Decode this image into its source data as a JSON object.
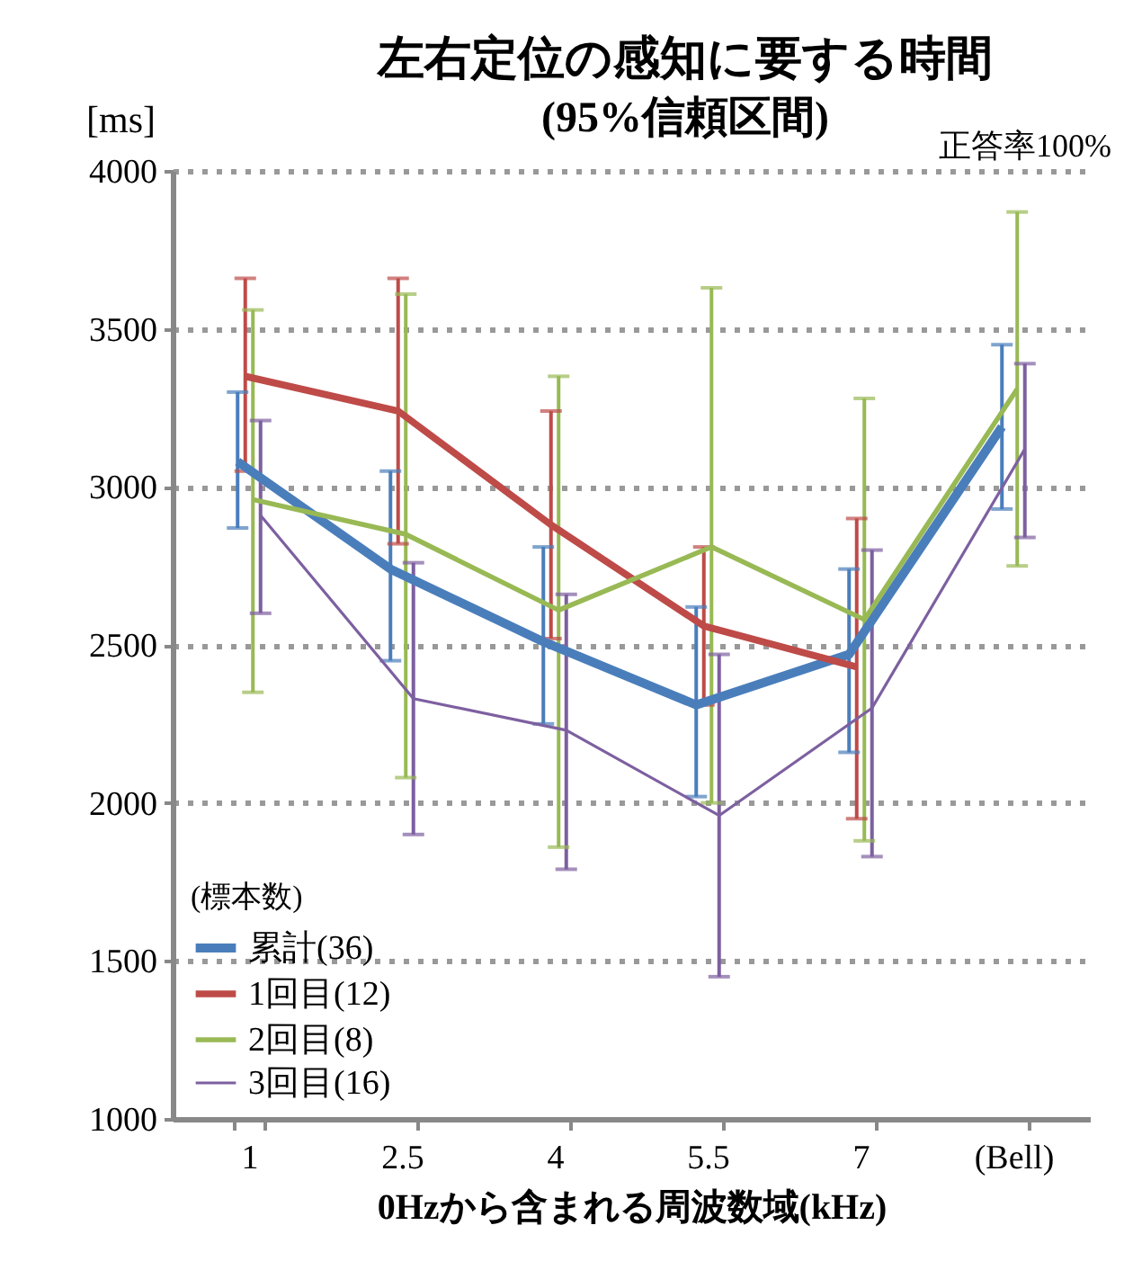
{
  "chart_data": {
    "type": "line",
    "title": "左右定位の感知に要する時間",
    "subtitle": "(95%信頼区間)",
    "xlabel": "0Hzから含まれる周波数域(kHz)",
    "ylabel": "[ms]",
    "legend_title": "(標本数)",
    "annotations": [
      "正答率100%"
    ],
    "categories": [
      "1",
      "2.5",
      "4",
      "5.5",
      "7",
      "(Bell)"
    ],
    "series": [
      {
        "name": "累計(36)",
        "color": "#4a7ebb",
        "values": [
          3080,
          2740,
          2510,
          2310,
          2470,
          3190
        ],
        "errors": [
          [
            2870,
            3300
          ],
          [
            2450,
            3050
          ],
          [
            2250,
            2810
          ],
          [
            2020,
            2620
          ],
          [
            2160,
            2740
          ],
          [
            2930,
            3450
          ]
        ]
      },
      {
        "name": "1回目(12)",
        "color": "#be4b48",
        "values": [
          3350,
          3240,
          2880,
          2560,
          2430,
          null
        ],
        "errors": [
          [
            3050,
            3660
          ],
          [
            2820,
            3660
          ],
          [
            2520,
            3240
          ],
          [
            2310,
            2810
          ],
          [
            1950,
            2900
          ],
          null
        ]
      },
      {
        "name": "2回目(8)",
        "color": "#98b954",
        "values": [
          2960,
          2850,
          2610,
          2810,
          2580,
          3310
        ],
        "errors": [
          [
            2350,
            3560
          ],
          [
            2080,
            3610
          ],
          [
            1860,
            3350
          ],
          [
            2000,
            3630
          ],
          [
            1880,
            3280
          ],
          [
            2750,
            3870
          ]
        ]
      },
      {
        "name": "3回目(16)",
        "color": "#7d60a0",
        "values": [
          2910,
          2330,
          2230,
          1960,
          2300,
          3120
        ],
        "errors": [
          [
            2600,
            3210
          ],
          [
            1900,
            2760
          ],
          [
            1790,
            2660
          ],
          [
            1450,
            2470
          ],
          [
            1830,
            2800
          ],
          [
            2840,
            3390
          ]
        ]
      }
    ],
    "ylim": [
      1000,
      4000
    ],
    "yticks": [
      1000,
      1500,
      2000,
      2500,
      3000,
      3500,
      4000
    ],
    "grid": "y",
    "legend": "bottom left",
    "marker": "none",
    "line_style": "solid"
  }
}
